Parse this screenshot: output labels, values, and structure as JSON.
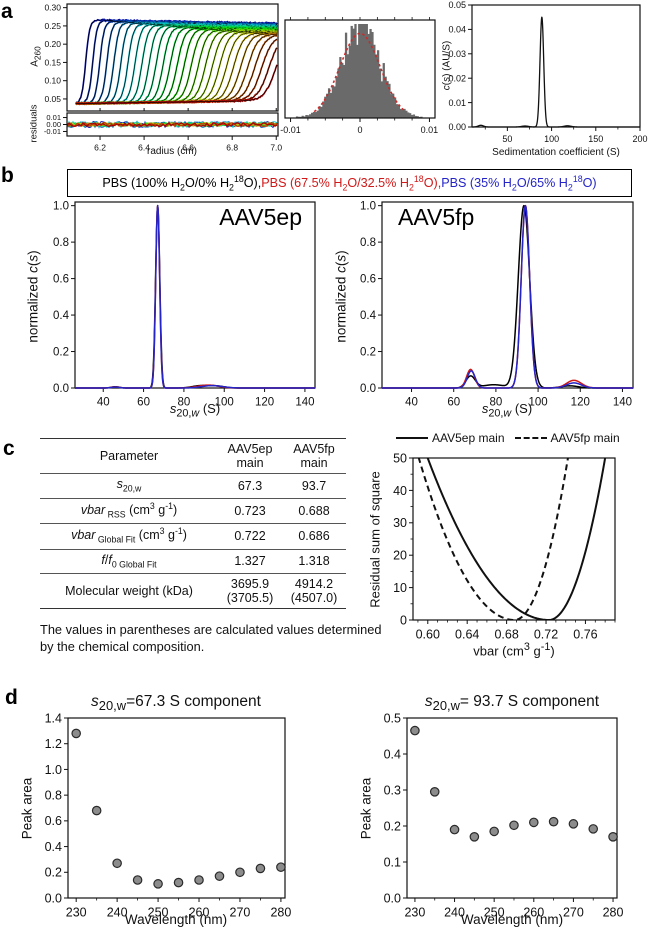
{
  "panel_labels": {
    "a": "a",
    "b": "b",
    "c": "c",
    "d": "d"
  },
  "footnote": "The values in parentheses are calculated values determined by the chemical composition.",
  "b_legend": {
    "items": [
      {
        "html": "PBS (100% H<sub>2</sub>O/0% H<sub>2</sub><sup>18</sup>O)",
        "color": "#000000"
      },
      {
        "html": "PBS (67.5% H<sub>2</sub>O/32.5% H<sub>2</sub><sup>18</sup>O)",
        "color": "#d01818"
      },
      {
        "html": "PBS (35% H<sub>2</sub>O/65% H<sub>2</sub><sup>18</sup>O)",
        "color": "#2424c8"
      }
    ],
    "separator": ", "
  },
  "c_legend": {
    "items": [
      {
        "label": "AAV5ep main",
        "dash": false
      },
      {
        "label": "AAV5fp main",
        "dash": true
      }
    ]
  },
  "table": {
    "headers": [
      "Parameter",
      "AAV5ep<br>main",
      "AAV5fp<br>main"
    ],
    "rows": [
      {
        "param": "<i>s</i><sub>20,w</sub>",
        "ep": "67.3",
        "fp": "93.7"
      },
      {
        "param": "<i>vbar</i><sub> RSS</sub> (cm<sup>3</sup> g<sup>-1</sup>)",
        "ep": "0.723",
        "fp": "0.688"
      },
      {
        "param": "<i>vbar</i><sub> Global Fit</sub> (cm<sup>3</sup> g<sup>-1</sup>)",
        "ep": "0.722",
        "fp": "0.686"
      },
      {
        "param": "<i>f</i>/<i>f</i><sub>0 Global Fit</sub>",
        "ep": "1.327",
        "fp": "1.318"
      },
      {
        "param": "Molecular weight (kDa)",
        "ep": "3695.9<br>(3705.5)",
        "fp": "4914.2<br>(4507.0)"
      }
    ]
  },
  "chart_data": [
    {
      "id": "a_raw",
      "render": "raw",
      "type": "line",
      "xlabel": "radius (cm)",
      "ylabel_html": "A<sub>260</sub>",
      "ylabel2": "residuals",
      "xlim": [
        6.05,
        7.008
      ],
      "ylim": [
        0.017,
        0.31
      ],
      "res_ylim": [
        -0.0165,
        0.0165
      ],
      "xticks": [
        {
          "v": 6.2,
          "l": "6.2"
        },
        {
          "v": 6.4,
          "l": "6.4"
        },
        {
          "v": 6.6,
          "l": "6.6"
        },
        {
          "v": 6.8,
          "l": "6.8"
        },
        {
          "v": 7.0,
          "l": "7.0"
        }
      ],
      "yticks": [
        {
          "v": 0.05,
          "l": "0.05"
        },
        {
          "v": 0.1,
          "l": "0.10"
        },
        {
          "v": 0.15,
          "l": "0.15"
        },
        {
          "v": 0.2,
          "l": "0.20"
        },
        {
          "v": 0.25,
          "l": "0.25"
        },
        {
          "v": 0.3,
          "l": "0.30"
        }
      ],
      "res_ticks": [
        {
          "v": 0.01,
          "l": "0.01"
        },
        {
          "v": 0,
          "l": "0.00"
        },
        {
          "v": -0.01,
          "l": "-0.01"
        }
      ],
      "scans": {
        "count": 28,
        "baseline": 0.04,
        "plateau_first": 0.267,
        "plateau_last": 0.222,
        "boundary_first": 6.135,
        "boundary_last": 6.998,
        "width_first": 0.009,
        "width_last": 0.026,
        "data_start": 6.09
      },
      "residual_amplitude": 0.004
    },
    {
      "id": "a_hist",
      "render": "hist",
      "type": "histogram",
      "xlim": [
        -0.0108,
        0.0108
      ],
      "xticks": [
        {
          "v": -0.01,
          "l": "-0.01"
        },
        {
          "v": 0,
          "l": "0"
        },
        {
          "v": 0.01,
          "l": "0.01"
        }
      ],
      "x_minor_step": 0.0025,
      "bins": 70,
      "sigma": 0.0028,
      "bar_color": "#6a6a6a",
      "fit_color": "#cc2a2a"
    },
    {
      "id": "a_cs",
      "render": "curves",
      "type": "line",
      "xlabel": "Sedimentation coefficient (S)",
      "ylabel_html": "<i>c</i>(<i>s</i>) (AU/S)",
      "xlim": [
        10,
        200
      ],
      "ylim": [
        0,
        0.05
      ],
      "xticks": [
        {
          "v": 50,
          "l": "50"
        },
        {
          "v": 100,
          "l": "100"
        },
        {
          "v": 150,
          "l": "150"
        },
        {
          "v": 200,
          "l": "200"
        }
      ],
      "x_minor_step": 25,
      "yticks": [
        {
          "v": 0,
          "l": "0.00"
        },
        {
          "v": 0.01,
          "l": "0.01"
        },
        {
          "v": 0.02,
          "l": "0.02"
        },
        {
          "v": 0.03,
          "l": "0.03"
        },
        {
          "v": 0.04,
          "l": "0.04"
        },
        {
          "v": 0.05,
          "l": "0.05"
        }
      ],
      "main_peak_s": 89,
      "series": [
        {
          "name": "c(s)",
          "color": "#111111",
          "width": 1.3,
          "peaks": [
            {
              "center": 20,
              "height": 0.0007,
              "sigma": 3
            },
            {
              "center": 70,
              "height": 0.0004,
              "sigma": 4
            },
            {
              "center": 89,
              "height": 0.045,
              "sigma": 2.1
            },
            {
              "center": 118,
              "height": 0.0005,
              "sigma": 4
            }
          ]
        }
      ]
    },
    {
      "id": "b_ep",
      "render": "curves",
      "type": "line",
      "annotation": "AAV5ep",
      "xlabel_html": "<i>s</i><sub>20,<i>w</i></sub> (S)",
      "ylabel_html": "normalized <i>c</i>(<i>s</i>)",
      "xlim": [
        26,
        145
      ],
      "ylim": [
        0,
        1.02
      ],
      "xticks": [
        {
          "v": 40,
          "l": "40"
        },
        {
          "v": 60,
          "l": "60"
        },
        {
          "v": 80,
          "l": "80"
        },
        {
          "v": 100,
          "l": "100"
        },
        {
          "v": 120,
          "l": "120"
        },
        {
          "v": 140,
          "l": "140"
        }
      ],
      "yticks": [
        {
          "v": 0,
          "l": "0.0"
        },
        {
          "v": 0.2,
          "l": "0.2"
        },
        {
          "v": 0.4,
          "l": "0.4"
        },
        {
          "v": 0.6,
          "l": "0.6"
        },
        {
          "v": 0.8,
          "l": "0.8"
        },
        {
          "v": 1.0,
          "l": "1.0"
        }
      ],
      "main_peak_s": 67.3,
      "series": [
        {
          "name": "PBS (100% H2O/0% H218O)",
          "color": "#000000",
          "width": 1.5,
          "peaks": [
            {
              "center": 67,
              "height": 1.0,
              "sigma": 1.05
            },
            {
              "center": 46,
              "height": 0.007,
              "sigma": 2
            },
            {
              "center": 88,
              "height": 0.012,
              "sigma": 4
            },
            {
              "center": 96,
              "height": 0.011,
              "sigma": 4
            }
          ]
        },
        {
          "name": "PBS (67.5% H2O/32.5% H218O)",
          "color": "#d01818",
          "width": 1.5,
          "peaks": [
            {
              "center": 67,
              "height": 1.0,
              "sigma": 0.98
            },
            {
              "center": 46,
              "height": 0.006,
              "sigma": 2
            },
            {
              "center": 92,
              "height": 0.016,
              "sigma": 5
            }
          ]
        },
        {
          "name": "PBS (35% H2O/65% H218O)",
          "color": "#2424c8",
          "width": 1.5,
          "peaks": [
            {
              "center": 67,
              "height": 1.0,
              "sigma": 0.98
            },
            {
              "center": 46,
              "height": 0.005,
              "sigma": 2
            },
            {
              "center": 94,
              "height": 0.013,
              "sigma": 5
            }
          ]
        }
      ]
    },
    {
      "id": "b_fp",
      "render": "curves",
      "type": "line",
      "annotation": "AAV5fp",
      "xlabel_html": "<i>s</i><sub>20,<i>w</i></sub> (S)",
      "ylabel_html": "normalized <i>c</i>(<i>s</i>)",
      "xlim": [
        26,
        145
      ],
      "ylim": [
        0,
        1.02
      ],
      "xticks": [
        {
          "v": 40,
          "l": "40"
        },
        {
          "v": 60,
          "l": "60"
        },
        {
          "v": 80,
          "l": "80"
        },
        {
          "v": 100,
          "l": "100"
        },
        {
          "v": 120,
          "l": "120"
        },
        {
          "v": 140,
          "l": "140"
        }
      ],
      "yticks": [
        {
          "v": 0,
          "l": "0.0"
        },
        {
          "v": 0.2,
          "l": "0.2"
        },
        {
          "v": 0.4,
          "l": "0.4"
        },
        {
          "v": 0.6,
          "l": "0.6"
        },
        {
          "v": 0.8,
          "l": "0.8"
        },
        {
          "v": 1.0,
          "l": "1.0"
        }
      ],
      "main_peak_s": 93.7,
      "series": [
        {
          "name": "PBS (100% H2O/0% H218O)",
          "color": "#000000",
          "width": 1.5,
          "peaks": [
            {
              "center": 68,
              "height": 0.065,
              "sigma": 2.2
            },
            {
              "center": 79,
              "height": 0.018,
              "sigma": 5
            },
            {
              "center": 93.3,
              "height": 1.0,
              "sigma": 2.7
            },
            {
              "center": 115,
              "height": 0.012,
              "sigma": 4
            }
          ]
        },
        {
          "name": "PBS (67.5% H2O/32.5% H218O)",
          "color": "#d01818",
          "width": 1.5,
          "peaks": [
            {
              "center": 68,
              "height": 0.102,
              "sigma": 1.9
            },
            {
              "center": 94,
              "height": 1.0,
              "sigma": 2.0
            },
            {
              "center": 117,
              "height": 0.042,
              "sigma": 3.5
            }
          ]
        },
        {
          "name": "PBS (35% H2O/65% H218O)",
          "color": "#2424c8",
          "width": 1.5,
          "peaks": [
            {
              "center": 68.3,
              "height": 0.094,
              "sigma": 1.9
            },
            {
              "center": 94,
              "height": 1.0,
              "sigma": 2.0
            },
            {
              "center": 117,
              "height": 0.028,
              "sigma": 3.5
            }
          ]
        }
      ]
    },
    {
      "id": "c_rss",
      "render": "rss",
      "type": "line",
      "xlabel_html": "vbar (cm<sup>3</sup> g<sup>-1</sup>)",
      "ylabel": "Residual sum of square",
      "xlim": [
        0.585,
        0.79
      ],
      "ylim": [
        0,
        50
      ],
      "xticks": [
        {
          "v": 0.6,
          "l": "0.60"
        },
        {
          "v": 0.64,
          "l": "0.64"
        },
        {
          "v": 0.68,
          "l": "0.68"
        },
        {
          "v": 0.72,
          "l": "0.72"
        },
        {
          "v": 0.76,
          "l": "0.76"
        }
      ],
      "x_minor_step": 0.01,
      "y_minor_step": 5,
      "yticks": [
        {
          "v": 0,
          "l": "0"
        },
        {
          "v": 10,
          "l": "10"
        },
        {
          "v": 20,
          "l": "20"
        },
        {
          "v": 30,
          "l": "30"
        },
        {
          "v": 40,
          "l": "40"
        },
        {
          "v": 50,
          "l": "50"
        }
      ],
      "series": [
        {
          "name": "AAV5ep main",
          "color": "#111111",
          "width": 2,
          "dash": null,
          "min_vbar": 0.723,
          "a_left": 3300,
          "a_right": 15400
        },
        {
          "name": "AAV5fp main",
          "color": "#111111",
          "width": 2,
          "dash": "6,4",
          "min_vbar": 0.688,
          "a_left": 5300,
          "a_right": 17000
        }
      ]
    },
    {
      "id": "d_67",
      "render": "scatter",
      "type": "scatter",
      "title_html": "<i>s</i><sub>20,w</sub>=67.3 S component",
      "xlabel": "Wavelength (nm)",
      "ylabel": "Peak area",
      "xlim": [
        228,
        281
      ],
      "ylim": [
        0,
        1.4
      ],
      "xticks": [
        {
          "v": 230,
          "l": "230"
        },
        {
          "v": 240,
          "l": "240"
        },
        {
          "v": 250,
          "l": "250"
        },
        {
          "v": 260,
          "l": "260"
        },
        {
          "v": 270,
          "l": "270"
        },
        {
          "v": 280,
          "l": "280"
        }
      ],
      "x_minor_step": 5,
      "yticks": [
        {
          "v": 0,
          "l": "0.0"
        },
        {
          "v": 0.2,
          "l": "0.2"
        },
        {
          "v": 0.4,
          "l": "0.4"
        },
        {
          "v": 0.6,
          "l": "0.6"
        },
        {
          "v": 0.8,
          "l": "0.8"
        },
        {
          "v": 1.0,
          "l": "1.0"
        },
        {
          "v": 1.2,
          "l": "1.2"
        },
        {
          "v": 1.4,
          "l": "1.4"
        }
      ],
      "x": [
        230,
        235,
        240,
        245,
        250,
        255,
        260,
        265,
        270,
        275,
        280
      ],
      "y": [
        1.28,
        0.68,
        0.27,
        0.14,
        0.11,
        0.12,
        0.14,
        0.17,
        0.2,
        0.23,
        0.24
      ],
      "marker": {
        "fill": "#8c8c8c",
        "stroke": "#2a2a2a",
        "r": 4.2
      }
    },
    {
      "id": "d_94",
      "render": "scatter",
      "type": "scatter",
      "title_html": "<i>s</i><sub>20,w</sub>= 93.7 S component",
      "xlabel": "Wavelength (nm)",
      "ylabel": "Peak area",
      "xlim": [
        228,
        281
      ],
      "ylim": [
        0,
        0.5
      ],
      "xticks": [
        {
          "v": 230,
          "l": "230"
        },
        {
          "v": 240,
          "l": "240"
        },
        {
          "v": 250,
          "l": "250"
        },
        {
          "v": 260,
          "l": "260"
        },
        {
          "v": 270,
          "l": "270"
        },
        {
          "v": 280,
          "l": "280"
        }
      ],
      "x_minor_step": 5,
      "yticks": [
        {
          "v": 0,
          "l": "0.0"
        },
        {
          "v": 0.1,
          "l": "0.1"
        },
        {
          "v": 0.2,
          "l": "0.2"
        },
        {
          "v": 0.3,
          "l": "0.3"
        },
        {
          "v": 0.4,
          "l": "0.4"
        },
        {
          "v": 0.5,
          "l": "0.5"
        }
      ],
      "x": [
        230,
        235,
        240,
        245,
        250,
        255,
        260,
        265,
        270,
        275,
        280
      ],
      "y": [
        0.465,
        0.295,
        0.19,
        0.17,
        0.185,
        0.202,
        0.21,
        0.212,
        0.206,
        0.192,
        0.17
      ],
      "marker": {
        "fill": "#8c8c8c",
        "stroke": "#2a2a2a",
        "r": 4.2
      }
    }
  ]
}
